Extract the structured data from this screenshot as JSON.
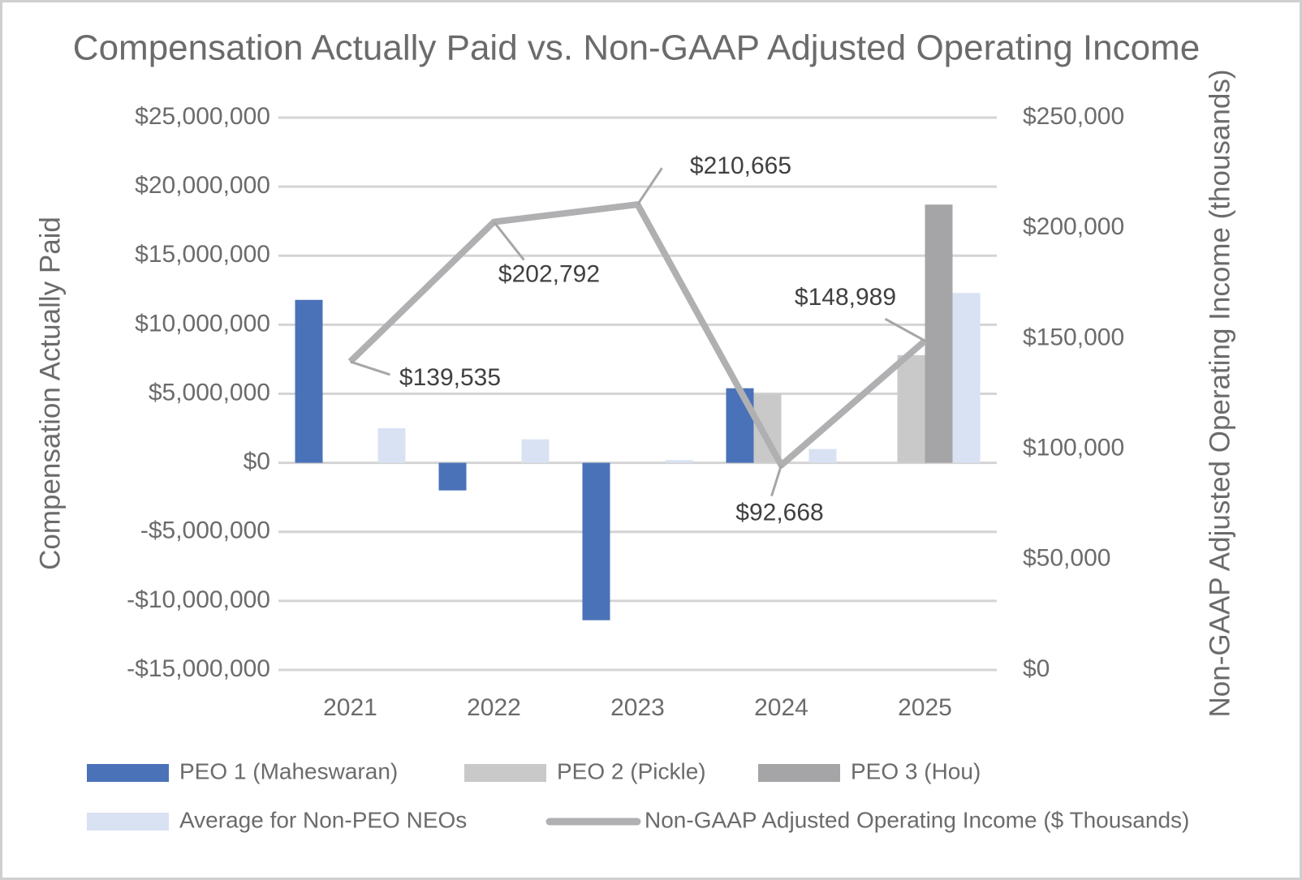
{
  "chart_data": {
    "type": "bar",
    "title": "Compensation Actually Paid vs. Non-GAAP Adjusted Operating Income",
    "y_label": "Compensation Actually Paid",
    "y2_label": "Non-GAAP Adjusted Operating Income (thousands)",
    "categories": [
      "2021",
      "2022",
      "2023",
      "2024",
      "2025"
    ],
    "ylim": [
      -15000000,
      25000000
    ],
    "yticks": [
      {
        "value": -15000000,
        "label": "-$15,000,000"
      },
      {
        "value": -10000000,
        "label": "-$10,000,000"
      },
      {
        "value": -5000000,
        "label": "-$5,000,000"
      },
      {
        "value": 0,
        "label": "$0"
      },
      {
        "value": 5000000,
        "label": "$5,000,000"
      },
      {
        "value": 10000000,
        "label": "$10,000,000"
      },
      {
        "value": 15000000,
        "label": "$15,000,000"
      },
      {
        "value": 20000000,
        "label": "$20,000,000"
      },
      {
        "value": 25000000,
        "label": "$25,000,000"
      }
    ],
    "y2lim": [
      0,
      250000
    ],
    "y2ticks": [
      {
        "value": 0,
        "label": "$0"
      },
      {
        "value": 50000,
        "label": "$50,000"
      },
      {
        "value": 100000,
        "label": "$100,000"
      },
      {
        "value": 150000,
        "label": "$150,000"
      },
      {
        "value": 200000,
        "label": "$200,000"
      },
      {
        "value": 250000,
        "label": "$250,000"
      }
    ],
    "grid": true,
    "series": [
      {
        "name": "PEO 1 (Maheswaran)",
        "color": "#4a72b8",
        "values": [
          11800000,
          -2000000,
          -11400000,
          5400000,
          null
        ]
      },
      {
        "name": "PEO 2 (Pickle)",
        "color": "#c9c9c9",
        "values": [
          null,
          null,
          null,
          5000000,
          7800000
        ]
      },
      {
        "name": "PEO 3 (Hou)",
        "color": "#a5a5a7",
        "values": [
          null,
          null,
          null,
          null,
          18700000
        ]
      },
      {
        "name": "Average for Non-PEO NEOs",
        "color": "#d9e2f3",
        "values": [
          2500000,
          1700000,
          200000,
          1000000,
          12300000
        ]
      },
      {
        "name": "Non-GAAP Adjusted Operating Income ($ Thousands)",
        "color": "#b0b0b2",
        "type": "line",
        "axis": "y2",
        "values": [
          139535,
          202792,
          210665,
          92668,
          148989
        ],
        "value_labels": [
          "$139,535",
          "$202,792",
          "$210,665",
          "$92,668",
          "$148,989"
        ]
      }
    ]
  }
}
